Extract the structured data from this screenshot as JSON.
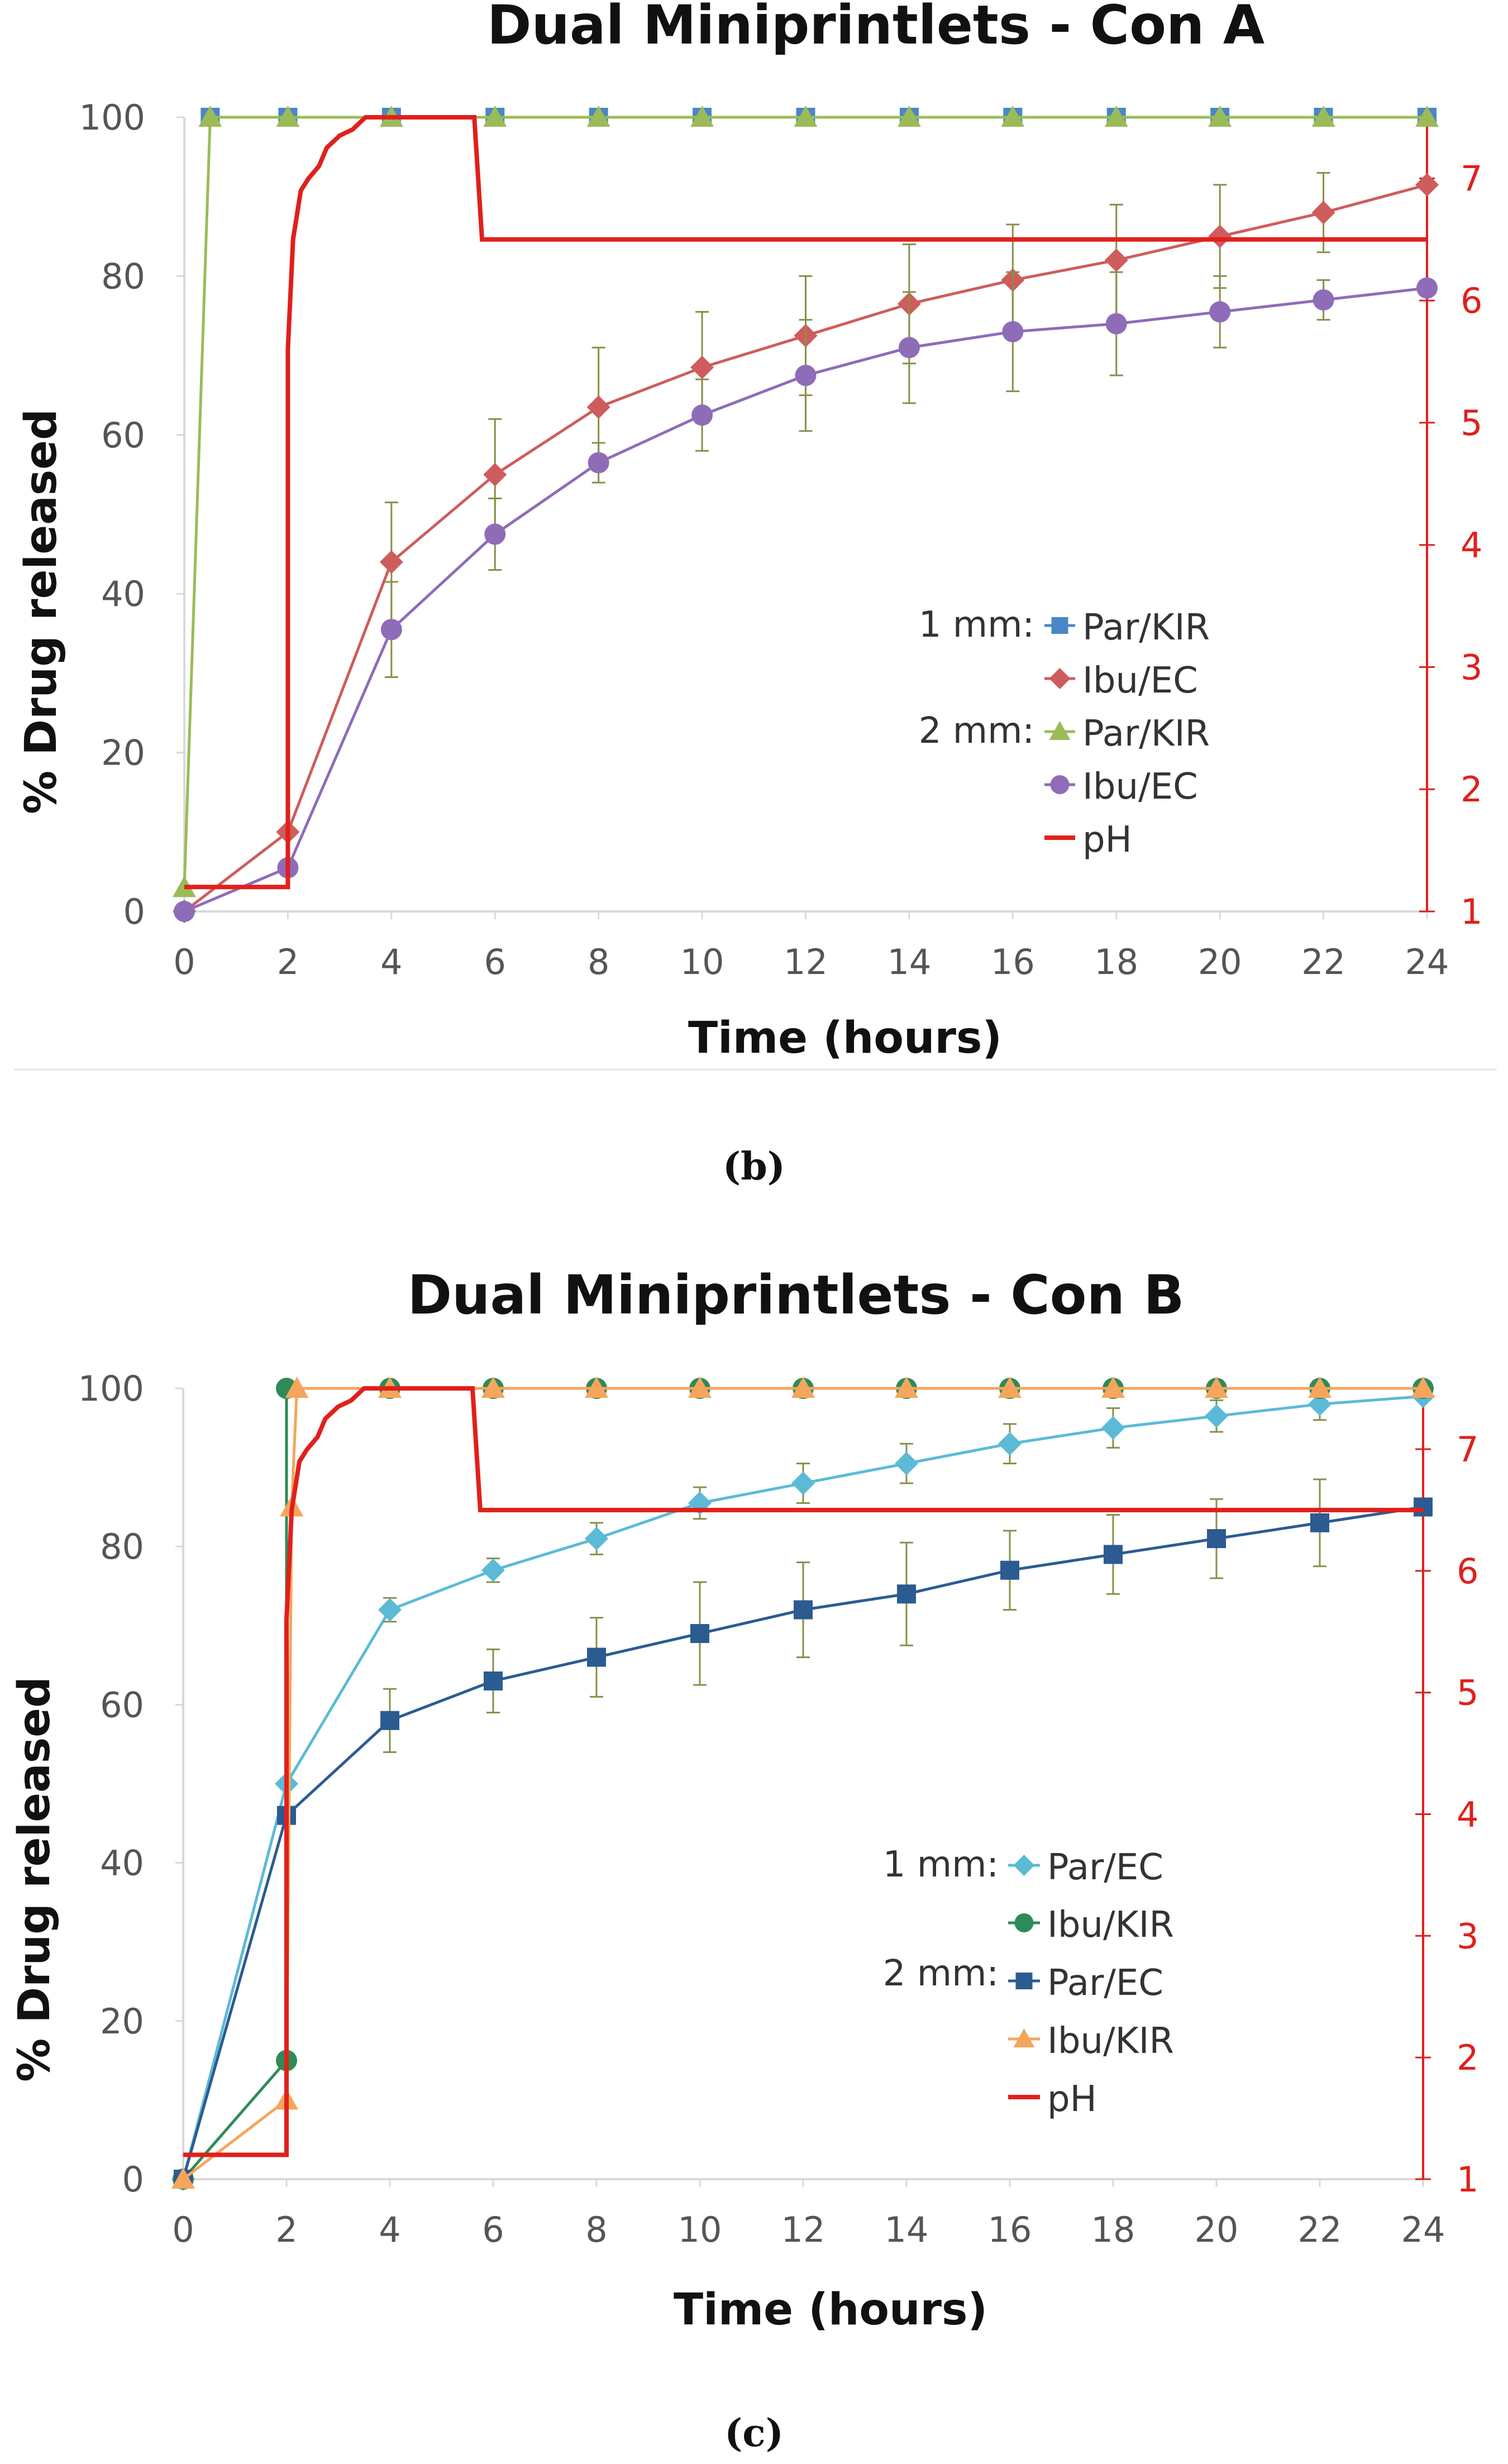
{
  "chart_data": [
    {
      "type": "line",
      "title": "Dual Miniprintlets - Con A",
      "xlabel": "Time (hours)",
      "ylabel": "% Drug released",
      "xlim": [
        0,
        24
      ],
      "ylim": [
        0,
        100
      ],
      "y2lim": [
        1,
        7.5
      ],
      "x_ticks": [
        0,
        2,
        4,
        6,
        8,
        10,
        12,
        14,
        16,
        18,
        20,
        22,
        24
      ],
      "y_ticks": [
        0,
        20,
        40,
        60,
        80,
        100
      ],
      "y2_ticks": [
        1,
        2,
        3,
        4,
        5,
        6,
        7
      ],
      "panel_label": "(b)",
      "legend": {
        "group1": "1 mm:",
        "group2": "2 mm:"
      },
      "colors": {
        "par_kir_1mm": "#4a86c8",
        "ibu_ec_1mm": "#cf5c5c",
        "par_kir_2mm": "#9bbb59",
        "ibu_ec_2mm": "#8e6cb8",
        "ph": "#e0201b"
      },
      "series": [
        {
          "name": "Par/KIR",
          "key": "par_kir_1mm",
          "group": 1,
          "marker": "square",
          "x": [
            0.5,
            2,
            4,
            6,
            8,
            10,
            12,
            14,
            16,
            18,
            20,
            22,
            24
          ],
          "values": [
            100,
            100,
            100,
            100,
            100,
            100,
            100,
            100,
            100,
            100,
            100,
            100,
            100
          ]
        },
        {
          "name": "Ibu/EC",
          "key": "ibu_ec_1mm",
          "group": 1,
          "marker": "diamond",
          "x": [
            0,
            2,
            4,
            6,
            8,
            10,
            12,
            14,
            16,
            18,
            20,
            22,
            24
          ],
          "values": [
            0,
            10,
            44,
            55,
            63.5,
            68.5,
            72.5,
            76.5,
            79.5,
            82,
            85,
            88,
            91.5
          ],
          "err": [
            0,
            0,
            7.5,
            7,
            7.5,
            7,
            7.5,
            7.5,
            7,
            7,
            6.5,
            5,
            0
          ]
        },
        {
          "name": "Par/KIR",
          "key": "par_kir_2mm",
          "group": 2,
          "marker": "triangle",
          "x": [
            0,
            0.5,
            2,
            4,
            6,
            8,
            10,
            12,
            14,
            16,
            18,
            20,
            22,
            24
          ],
          "values": [
            3,
            100,
            100,
            100,
            100,
            100,
            100,
            100,
            100,
            100,
            100,
            100,
            100,
            100
          ]
        },
        {
          "name": "Ibu/EC",
          "key": "ibu_ec_2mm",
          "group": 2,
          "marker": "circle",
          "x": [
            0,
            2,
            4,
            6,
            8,
            10,
            12,
            14,
            16,
            18,
            20,
            22,
            24
          ],
          "values": [
            0,
            5.5,
            35.5,
            47.5,
            56.5,
            62.5,
            67.5,
            71,
            73,
            74,
            75.5,
            77,
            78.5
          ],
          "err": [
            0,
            0,
            6,
            4.5,
            2.5,
            4.5,
            7,
            7,
            7.5,
            6.5,
            4.5,
            2.5,
            0
          ]
        },
        {
          "name": "pH",
          "key": "ph",
          "axis": "right",
          "marker": "none",
          "x": [
            0,
            2,
            2,
            2.1,
            2.25,
            2.4,
            2.6,
            2.75,
            3,
            3.25,
            3.5,
            5.6,
            5.75,
            24
          ],
          "values": [
            1.2,
            1.2,
            5.6,
            6.5,
            6.9,
            7.0,
            7.1,
            7.25,
            7.35,
            7.4,
            7.5,
            7.5,
            6.5,
            6.5
          ]
        }
      ]
    },
    {
      "type": "line",
      "title": "Dual Miniprintlets - Con B",
      "xlabel": "Time (hours)",
      "ylabel": "% Drug released",
      "xlim": [
        0,
        24
      ],
      "ylim": [
        0,
        100
      ],
      "y2lim": [
        1,
        7.5
      ],
      "x_ticks": [
        0,
        2,
        4,
        6,
        8,
        10,
        12,
        14,
        16,
        18,
        20,
        22,
        24
      ],
      "y_ticks": [
        0,
        20,
        40,
        60,
        80,
        100
      ],
      "y2_ticks": [
        1,
        2,
        3,
        4,
        5,
        6,
        7
      ],
      "panel_label": "(c)",
      "legend": {
        "group1": "1 mm:",
        "group2": "2 mm:"
      },
      "colors": {
        "par_ec_1mm": "#5cbad6",
        "ibu_kir_1mm": "#2e8b57",
        "par_ec_2mm": "#2c5b91",
        "ibu_kir_2mm": "#f5a55c",
        "ph": "#e0201b"
      },
      "series": [
        {
          "name": "Par/EC",
          "key": "par_ec_1mm",
          "group": 1,
          "marker": "diamond",
          "x": [
            0,
            2,
            4,
            6,
            8,
            10,
            12,
            14,
            16,
            18,
            20,
            22,
            24
          ],
          "values": [
            0,
            50,
            72,
            77,
            81,
            85.5,
            88,
            90.5,
            93,
            95,
            96.5,
            98,
            99
          ],
          "err": [
            0,
            0,
            1.5,
            1.5,
            2,
            2,
            2.5,
            2.5,
            2.5,
            2.5,
            2,
            2,
            0
          ]
        },
        {
          "name": "Ibu/KIR",
          "key": "ibu_kir_1mm",
          "group": 1,
          "marker": "circle",
          "x": [
            0,
            2,
            2,
            4,
            6,
            8,
            10,
            12,
            14,
            16,
            18,
            20,
            22,
            24
          ],
          "values": [
            0,
            15,
            100,
            100,
            100,
            100,
            100,
            100,
            100,
            100,
            100,
            100,
            100,
            100
          ]
        },
        {
          "name": "Par/EC",
          "key": "par_ec_2mm",
          "group": 2,
          "marker": "square",
          "x": [
            0,
            2,
            4,
            6,
            8,
            10,
            12,
            14,
            16,
            18,
            20,
            22,
            24
          ],
          "values": [
            0,
            46,
            58,
            63,
            66,
            69,
            72,
            74,
            77,
            79,
            81,
            83,
            85
          ],
          "err": [
            0,
            0,
            4,
            4,
            5,
            6.5,
            6,
            6.5,
            5,
            5,
            5,
            5.5,
            0
          ]
        },
        {
          "name": "Ibu/KIR",
          "key": "ibu_kir_2mm",
          "group": 2,
          "marker": "triangle",
          "x": [
            0,
            2,
            2.1,
            2.2,
            4,
            6,
            8,
            10,
            12,
            14,
            16,
            18,
            20,
            22,
            24
          ],
          "values": [
            0,
            10,
            85,
            100,
            100,
            100,
            100,
            100,
            100,
            100,
            100,
            100,
            100,
            100,
            100
          ]
        },
        {
          "name": "pH",
          "key": "ph",
          "axis": "right",
          "marker": "none",
          "x": [
            0,
            2,
            2,
            2.1,
            2.25,
            2.4,
            2.6,
            2.75,
            3,
            3.25,
            3.5,
            5.6,
            5.75,
            24
          ],
          "values": [
            1.2,
            1.2,
            5.6,
            6.5,
            6.9,
            7.0,
            7.1,
            7.25,
            7.35,
            7.4,
            7.5,
            7.5,
            6.5,
            6.5
          ]
        }
      ]
    }
  ]
}
